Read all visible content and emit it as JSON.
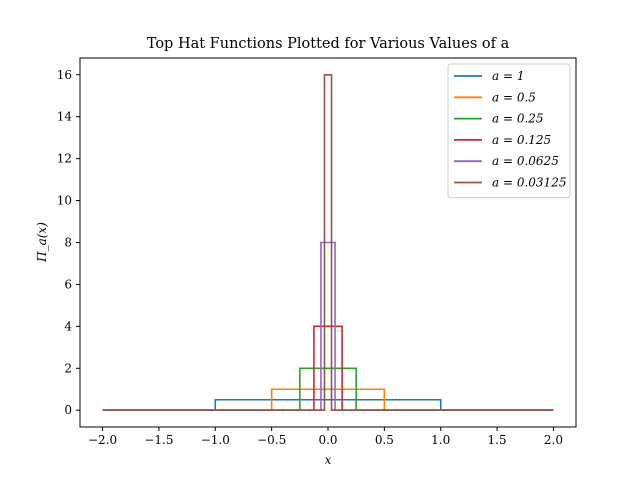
{
  "chart_data": {
    "type": "line",
    "title": "Top Hat Functions Plotted for Various Values of a",
    "xlabel": "x",
    "ylabel": "Π_a(x)",
    "xlim": [
      -2.2,
      2.2
    ],
    "ylim": [
      -0.8,
      16.8
    ],
    "xticks": [
      "−2.0",
      "−1.5",
      "−1.0",
      "−0.5",
      "0.0",
      "0.5",
      "1.0",
      "1.5",
      "2.0"
    ],
    "yticks": [
      "0",
      "2",
      "4",
      "6",
      "8",
      "10",
      "12",
      "14",
      "16"
    ],
    "grid": false,
    "legend_position": "top-right",
    "x_domain": [
      -2.0,
      2.0
    ],
    "series": [
      {
        "name": "a = 1",
        "a": 1,
        "height": 0.5,
        "color": "#1f77b4"
      },
      {
        "name": "a = 0.5",
        "a": 0.5,
        "height": 1,
        "color": "#ff7f0e"
      },
      {
        "name": "a = 0.25",
        "a": 0.25,
        "height": 2,
        "color": "#2ca02c"
      },
      {
        "name": "a = 0.125",
        "a": 0.125,
        "height": 4,
        "color": "#d62728"
      },
      {
        "name": "a = 0.0625",
        "a": 0.0625,
        "height": 8,
        "color": "#9467bd"
      },
      {
        "name": "a = 0.03125",
        "a": 0.03125,
        "height": 16,
        "color": "#8c564b"
      }
    ]
  }
}
